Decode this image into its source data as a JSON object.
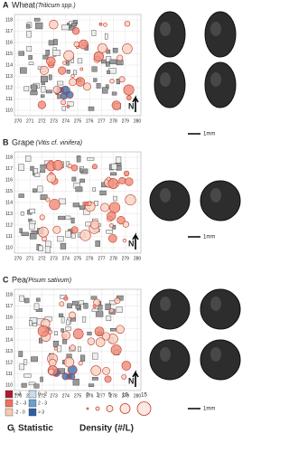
{
  "panels": [
    {
      "letter": "A",
      "name": "Wheat",
      "latin": "(Triticum spp.)",
      "scale": "1mm",
      "grains": 4
    },
    {
      "letter": "B",
      "name": "Grape",
      "latin": "(Vitis cf. vinifera)",
      "scale": "1mm",
      "grains": 2
    },
    {
      "letter": "C",
      "name": "Pea",
      "latin": "(Pisum sativum)",
      "scale": "1mm",
      "grains": 4
    }
  ],
  "map_axes": {
    "x_ticks": [
      270,
      271,
      272,
      273,
      274,
      275,
      276,
      277,
      278,
      279,
      280
    ],
    "y_ticks": [
      110,
      111,
      112,
      113,
      114,
      115,
      116,
      117,
      118
    ]
  },
  "north": "N",
  "legend": {
    "gi_title": "G",
    "gi_sub": "i",
    "gi_statistic": "Statistic",
    "gi_classes": [
      {
        "label": "<-3",
        "color": "#b2182b"
      },
      {
        "label": "-2 - -3",
        "color": "#ef6f5e"
      },
      {
        "label": "-2 - 0",
        "color": "#f8c9b0"
      },
      {
        "label": "0 - 2",
        "color": "#c7dcef"
      },
      {
        "label": "2 - 3",
        "color": "#6a9fd0"
      },
      {
        "label": "> 3",
        "color": "#2c5fa8"
      }
    ],
    "density_title": "Density (#/L)",
    "density_values": [
      0,
      1,
      5,
      10,
      15
    ]
  }
}
